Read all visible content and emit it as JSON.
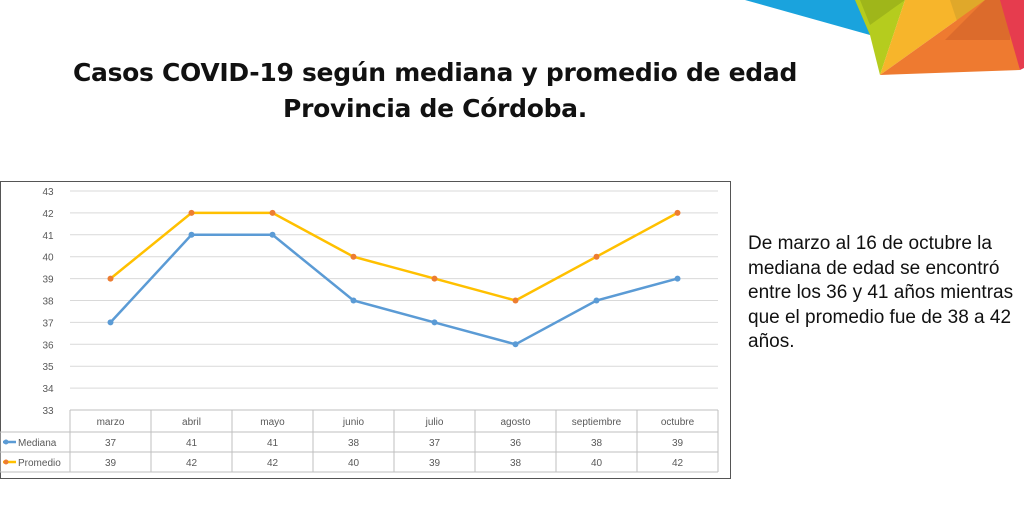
{
  "title": {
    "line1": "Casos COVID-19 según mediana y promedio de edad",
    "line2": "Provincia de Córdoba."
  },
  "side_text": "De marzo al 16 de octubre la mediana de edad se encontró entre los 36 y 41 años mientras que el promedio fue de 38 a 42 años.",
  "chart_data": {
    "type": "line",
    "categories": [
      "marzo",
      "abril",
      "mayo",
      "junio",
      "julio",
      "agosto",
      "septiembre",
      "octubre"
    ],
    "series": [
      {
        "name": "Mediana",
        "color": "#5b9bd5",
        "values": [
          37,
          41,
          41,
          38,
          37,
          36,
          38,
          39
        ]
      },
      {
        "name": "Promedio",
        "color": "#ffc000",
        "marker_color": "#ed7d31",
        "values": [
          39,
          42,
          42,
          40,
          39,
          38,
          40,
          42
        ]
      }
    ],
    "ylim": [
      33,
      43
    ],
    "yticks": [
      33,
      34,
      35,
      36,
      37,
      38,
      39,
      40,
      41,
      42,
      43
    ],
    "grid": true,
    "legend": "data-table-left"
  }
}
